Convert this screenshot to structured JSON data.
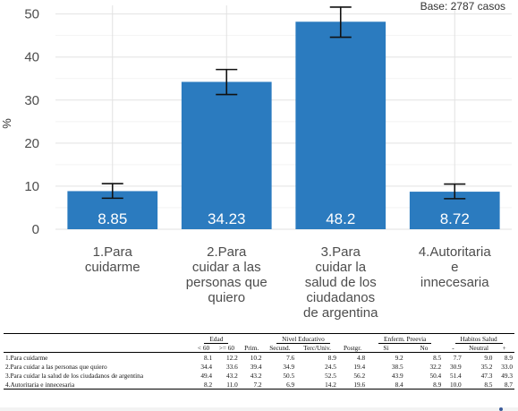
{
  "chart_data": {
    "type": "bar",
    "categories": [
      "1.Para\ncuidarme",
      "2.Para\ncuidar a las\npersonas que\nquiero",
      "3.Para\ncuidar la\nsalud de los\nciudadanos\nde argentina",
      "4.Autoritaria\ne\ninnecesaria"
    ],
    "values": [
      8.85,
      34.23,
      48.2,
      8.72
    ],
    "error_low": [
      7.2,
      31.3,
      44.6,
      7.1
    ],
    "error_high": [
      10.6,
      37.1,
      51.6,
      10.5
    ],
    "data_labels": [
      "8.85",
      "34.23",
      "48.2",
      "8.72"
    ],
    "ylabel": "%",
    "ylim": [
      0,
      52
    ],
    "yticks": [
      0,
      10,
      20,
      30,
      40,
      50
    ],
    "grid": true,
    "bar_color": "#2b7bbf",
    "note": "Base: 2787 casos"
  },
  "table": {
    "groups": [
      {
        "label": "",
        "span": 1
      },
      {
        "label": "Edad",
        "span": 2
      },
      {
        "label": "Nivel Educativo",
        "span": 4
      },
      {
        "label": "Enferm. Preevia",
        "span": 2
      },
      {
        "label": "Habitos Salud",
        "span": 3
      }
    ],
    "columns": [
      "",
      "< 60",
      ">= 60",
      "Prim.",
      "Secund.",
      "Terc/Univ.",
      "Postgr.",
      "Si",
      "No",
      "-",
      "Neutral",
      "+"
    ],
    "rows": [
      {
        "label": "1.Para cuidarme",
        "values": [
          "8.1",
          "12.2",
          "10.2",
          "7.6",
          "8.9",
          "4.8",
          "9.2",
          "8.5",
          "7.7",
          "9.0",
          "8.9"
        ]
      },
      {
        "label": "2.Para cuidar a las personas que quiero",
        "values": [
          "34.4",
          "33.6",
          "39.4",
          "34.9",
          "24.5",
          "19.4",
          "38.5",
          "32.2",
          "30.9",
          "35.2",
          "33.0"
        ]
      },
      {
        "label": "3.Para cuidar la salud de los ciudadanos de argentina",
        "values": [
          "49.4",
          "43.2",
          "43.2",
          "50.5",
          "52.5",
          "56.2",
          "43.9",
          "50.4",
          "51.4",
          "47.3",
          "49.3"
        ]
      },
      {
        "label": "4.Autoritaria e innecesaria",
        "values": [
          "8.2",
          "11.0",
          "7.2",
          "6.9",
          "14.2",
          "19.6",
          "8.4",
          "8.9",
          "10.0",
          "8.5",
          "8.7"
        ]
      }
    ]
  }
}
